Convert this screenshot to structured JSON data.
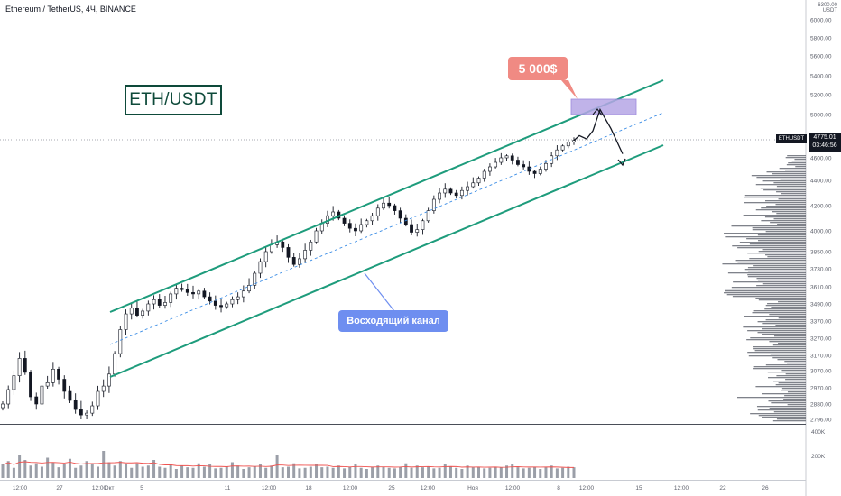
{
  "header": {
    "title": "Ethereum / TetherUS, 4Ч, BINANCE"
  },
  "annotations": {
    "symbol_box": "ETH/USDT",
    "target_callout": "5 000$",
    "channel_label": "Восходящий канал"
  },
  "price_tag": {
    "symbol": "ETHUSDT",
    "price": "4775.01",
    "countdown": "03:46:56"
  },
  "axis": {
    "currency_label": "USDT",
    "top_label": "6300.00",
    "y_ticks": [
      "6000.00",
      "5800.00",
      "5600.00",
      "5400.00",
      "5200.00",
      "5000.00",
      "4800.00",
      "4600.00",
      "4400.00",
      "4200.00",
      "4000.00",
      "3850.00",
      "3730.00",
      "3610.00",
      "3490.00",
      "3370.00",
      "3270.00",
      "3170.00",
      "3070.00",
      "2970.00",
      "2880.00",
      "2796.00"
    ],
    "x_ticks": [
      "12:00",
      "27",
      "12:00",
      "Окт",
      "5",
      "11",
      "12:00",
      "18",
      "12:00",
      "25",
      "12:00",
      "Ноя",
      "12:00",
      "8",
      "12:00",
      "15",
      "12:00",
      "22",
      "26"
    ],
    "volume_ticks": [
      "400K",
      "200K"
    ]
  },
  "colors": {
    "channel": "#1e9c7c",
    "midline": "#3d8ee6",
    "callout": "#f08a83",
    "label": "#6e8ef0",
    "target_zone": "#b6a6e6",
    "volume": "#8a8e99",
    "ma": "#ef5350"
  },
  "chart_data": {
    "type": "candlestick",
    "title": "Ethereum / TetherUS, 4Ч, BINANCE",
    "ylim": [
      2796,
      6300
    ],
    "current_price": 4775.01,
    "target_zone": [
      5000,
      5150
    ],
    "channel": {
      "upper": [
        [
          3520,
          5700
        ],
        [
          4460,
          6180
        ]
      ],
      "lower": [
        [
          2990,
          5200
        ],
        [
          3970,
          5600
        ]
      ]
    },
    "close_trace": [
      2880,
      2960,
      3040,
      3150,
      3060,
      2920,
      2880,
      2980,
      3000,
      3080,
      3020,
      2950,
      2900,
      2850,
      2820,
      2830,
      2870,
      2950,
      2980,
      3050,
      3180,
      3320,
      3420,
      3460,
      3410,
      3440,
      3490,
      3520,
      3480,
      3500,
      3560,
      3600,
      3590,
      3570,
      3560,
      3580,
      3540,
      3510,
      3480,
      3470,
      3490,
      3520,
      3540,
      3580,
      3620,
      3700,
      3780,
      3850,
      3900,
      3920,
      3880,
      3810,
      3760,
      3800,
      3860,
      3920,
      4000,
      4060,
      4120,
      4150,
      4100,
      4060,
      4020,
      4000,
      4050,
      4080,
      4120,
      4180,
      4220,
      4200,
      4160,
      4100,
      4050,
      3990,
      4010,
      4080,
      4160,
      4250,
      4300,
      4330,
      4300,
      4280,
      4320,
      4350,
      4380,
      4420,
      4480,
      4520,
      4560,
      4600,
      4620,
      4580,
      4540,
      4520,
      4480,
      4460,
      4500,
      4550,
      4620,
      4680,
      4720,
      4760,
      4775
    ],
    "future_path": [
      4775,
      4820,
      4790,
      4860,
      5050,
      4880,
      4640
    ],
    "volume_series": [
      120,
      150,
      90,
      200,
      160,
      110,
      130,
      100,
      180,
      140,
      95,
      120,
      170,
      90,
      110,
      150,
      130,
      100,
      240,
      140,
      110,
      150,
      120,
      90,
      130,
      100,
      110,
      160,
      100,
      90,
      120,
      80,
      110,
      95,
      90,
      130,
      100,
      120,
      85,
      90,
      100,
      140,
      110,
      80,
      95,
      105,
      120,
      90,
      110,
      200,
      95,
      100,
      130,
      85,
      90,
      100,
      120,
      95,
      100,
      90,
      110,
      85,
      100,
      125,
      90,
      80,
      95,
      110,
      100,
      90,
      85,
      100,
      130,
      90,
      110,
      95,
      100,
      85,
      90,
      120,
      100,
      90,
      80,
      110,
      95,
      100,
      85,
      90,
      100,
      95,
      110,
      120,
      95,
      85,
      90,
      100,
      80,
      95,
      110,
      85,
      90,
      100,
      95
    ]
  }
}
